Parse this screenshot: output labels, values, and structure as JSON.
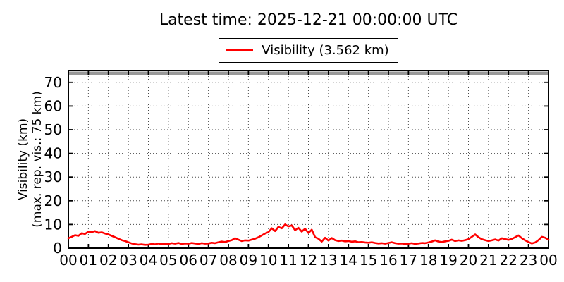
{
  "chart_data": {
    "type": "line",
    "title": "Latest time: 2025-12-21 00:00:00 UTC",
    "legend": {
      "position": "top-center",
      "entries": [
        {
          "label": "Visibility (3.562 km)",
          "color": "#ff0000"
        }
      ]
    },
    "ylabel_line1": "Visibility (km)",
    "ylabel_line2": "(max. rep. vis.: 75 km)",
    "xlabel": "",
    "xlim_hours": [
      0,
      24
    ],
    "ylim": [
      0,
      75
    ],
    "yticks": [
      0,
      10,
      20,
      30,
      40,
      50,
      60,
      70
    ],
    "xtick_labels": [
      "00",
      "01",
      "02",
      "03",
      "04",
      "05",
      "06",
      "07",
      "08",
      "09",
      "10",
      "11",
      "12",
      "13",
      "14",
      "15",
      "16",
      "17",
      "18",
      "19",
      "20",
      "21",
      "22",
      "23",
      "00"
    ],
    "grid": "dotted",
    "grid_color": "#4a4a4a",
    "max_reported_visibility_km": 75,
    "max_band_color": "#999999",
    "axis_color": "#000000",
    "series": [
      {
        "name": "Visibility",
        "unit": "km",
        "color": "#ff0000",
        "latest_value_km": 3.562,
        "x_start_hour": 0,
        "x_step_minutes": 10,
        "values": [
          4.2,
          4.8,
          5.5,
          5.2,
          6.3,
          6.0,
          7.0,
          6.8,
          7.2,
          6.5,
          6.7,
          6.2,
          5.8,
          5.2,
          4.6,
          4.0,
          3.4,
          3.0,
          2.5,
          2.0,
          1.7,
          1.5,
          1.6,
          1.4,
          1.5,
          1.8,
          1.6,
          2.0,
          1.7,
          1.9,
          1.8,
          2.1,
          1.9,
          2.2,
          1.8,
          2.0,
          1.9,
          2.2,
          2.0,
          1.8,
          2.1,
          1.9,
          2.0,
          2.3,
          2.1,
          2.5,
          2.8,
          2.6,
          3.0,
          3.4,
          4.2,
          3.6,
          3.0,
          3.3,
          3.2,
          3.6,
          4.0,
          4.6,
          5.4,
          6.2,
          6.8,
          8.4,
          7.2,
          9.0,
          8.4,
          10.0,
          9.2,
          9.6,
          7.6,
          8.6,
          7.0,
          8.2,
          6.4,
          7.8,
          4.6,
          4.0,
          2.8,
          4.4,
          3.2,
          4.3,
          3.4,
          3.0,
          3.2,
          2.9,
          3.0,
          2.7,
          2.9,
          2.5,
          2.6,
          2.4,
          2.3,
          2.5,
          2.2,
          2.0,
          2.1,
          1.9,
          2.2,
          2.5,
          2.1,
          1.9,
          2.0,
          1.8,
          1.9,
          2.1,
          1.8,
          2.0,
          2.2,
          2.1,
          2.4,
          2.8,
          3.3,
          2.8,
          2.6,
          2.9,
          3.1,
          3.6,
          3.0,
          3.3,
          3.1,
          3.4,
          3.8,
          4.8,
          5.8,
          4.6,
          3.8,
          3.4,
          3.0,
          3.3,
          3.7,
          3.2,
          4.2,
          3.8,
          3.5,
          3.9,
          4.6,
          5.4,
          4.2,
          3.3,
          2.6,
          2.0,
          2.4,
          3.4,
          4.8,
          4.4,
          3.562
        ]
      }
    ]
  }
}
